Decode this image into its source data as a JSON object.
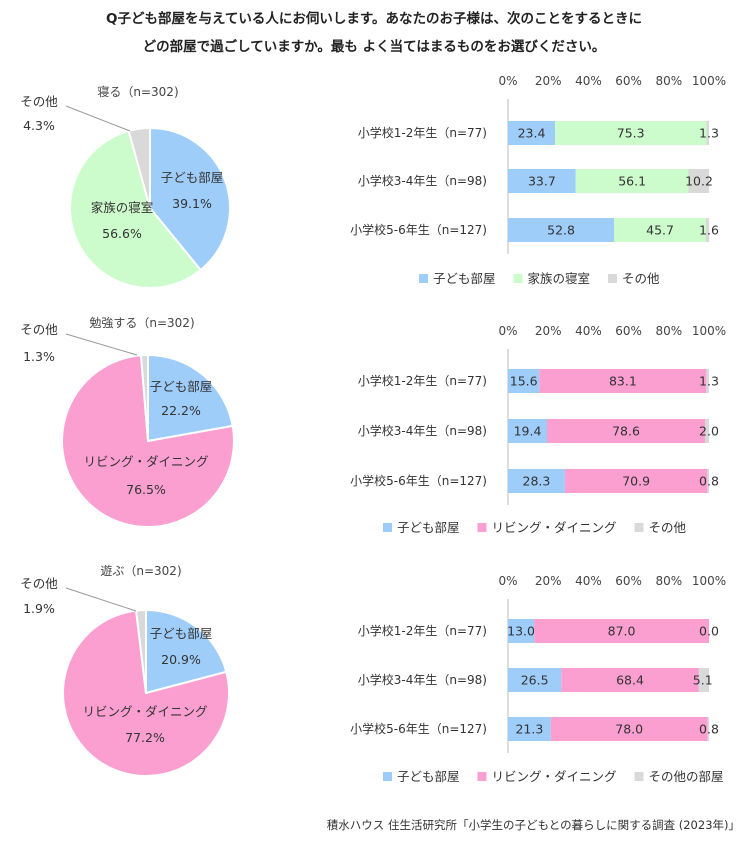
{
  "question": {
    "line1": "Q子ども部屋を与えている人にお伺いします。あなたのお子様は、次のことをするときに",
    "line2": "どの部屋で過ごしていますか。最も よく当てはまるものをお選びください。"
  },
  "source": "積水ハウス 住生活研究所「小学生の子どもとの暮らしに関する調査 (2023年)」",
  "colors": {
    "blue": "#9fcdfa",
    "green": "#ccfccc",
    "pink": "#fb9fd0",
    "gray": "#d9d9d9"
  },
  "chart_data": [
    {
      "type": "pie",
      "title": "寝る（n=302)",
      "slices": [
        {
          "label": "子ども部屋",
          "value": 39.1,
          "pct": "39.1%",
          "color": "#9fcdfa"
        },
        {
          "label": "家族の寝室",
          "value": 56.6,
          "pct": "56.6%",
          "color": "#ccfccc"
        },
        {
          "label": "その他",
          "value": 4.3,
          "pct": "4.3%",
          "color": "#d9d9d9"
        }
      ]
    },
    {
      "type": "bar",
      "orientation": "horizontal",
      "stacked": true,
      "xlim": [
        0,
        100
      ],
      "xticks": [
        "0%",
        "20%",
        "40%",
        "60%",
        "80%",
        "100%"
      ],
      "categories": [
        "小学校1-2年生（n=77)",
        "小学校3-4年生（n=98)",
        "小学校5-6年生（n=127)"
      ],
      "series": [
        {
          "name": "子ども部屋",
          "values": [
            23.4,
            33.7,
            52.8
          ],
          "labels": [
            "23.4",
            "33.7",
            "52.8"
          ],
          "color": "#9fcdfa"
        },
        {
          "name": "家族の寝室",
          "values": [
            75.3,
            56.1,
            45.7
          ],
          "labels": [
            "75.3",
            "56.1",
            "45.7"
          ],
          "color": "#ccfccc"
        },
        {
          "name": "その他",
          "values": [
            1.3,
            10.2,
            1.6
          ],
          "labels": [
            "1.3",
            "10.2",
            "1.6"
          ],
          "color": "#d9d9d9"
        }
      ],
      "legend": "bottom"
    },
    {
      "type": "pie",
      "title": "勉強する（n=302)",
      "slices": [
        {
          "label": "子ども部屋",
          "value": 22.2,
          "pct": "22.2%",
          "color": "#9fcdfa"
        },
        {
          "label": "リビング・ダイニング",
          "value": 76.5,
          "pct": "76.5%",
          "color": "#fb9fd0"
        },
        {
          "label": "その他",
          "value": 1.3,
          "pct": "1.3%",
          "color": "#d9d9d9"
        }
      ]
    },
    {
      "type": "bar",
      "orientation": "horizontal",
      "stacked": true,
      "xlim": [
        0,
        100
      ],
      "xticks": [
        "0%",
        "20%",
        "40%",
        "60%",
        "80%",
        "100%"
      ],
      "categories": [
        "小学校1-2年生（n=77)",
        "小学校3-4年生（n=98)",
        "小学校5-6年生（n=127)"
      ],
      "series": [
        {
          "name": "子ども部屋",
          "values": [
            15.6,
            19.4,
            28.3
          ],
          "labels": [
            "15.6",
            "19.4",
            "28.3"
          ],
          "color": "#9fcdfa"
        },
        {
          "name": "リビング・ダイニング",
          "values": [
            83.1,
            78.6,
            70.9
          ],
          "labels": [
            "83.1",
            "78.6",
            "70.9"
          ],
          "color": "#fb9fd0"
        },
        {
          "name": "その他",
          "values": [
            1.3,
            2.0,
            0.8
          ],
          "labels": [
            "1.3",
            "2.0",
            "0.8"
          ],
          "color": "#d9d9d9"
        }
      ],
      "legend": "bottom"
    },
    {
      "type": "pie",
      "title": "遊ぶ（n=302)",
      "slices": [
        {
          "label": "子ども部屋",
          "value": 20.9,
          "pct": "20.9%",
          "color": "#9fcdfa"
        },
        {
          "label": "リビング・ダイニング",
          "value": 77.2,
          "pct": "77.2%",
          "color": "#fb9fd0"
        },
        {
          "label": "その他",
          "value": 1.9,
          "pct": "1.9%",
          "color": "#d9d9d9"
        }
      ]
    },
    {
      "type": "bar",
      "orientation": "horizontal",
      "stacked": true,
      "xlim": [
        0,
        100
      ],
      "xticks": [
        "0%",
        "20%",
        "40%",
        "60%",
        "80%",
        "100%"
      ],
      "categories": [
        "小学校1-2年生（n=77)",
        "小学校3-4年生（n=98)",
        "小学校5-6年生（n=127)"
      ],
      "series": [
        {
          "name": "子ども部屋",
          "values": [
            13.0,
            26.5,
            21.3
          ],
          "labels": [
            "13.0",
            "26.5",
            "21.3"
          ],
          "color": "#9fcdfa"
        },
        {
          "name": "リビング・ダイニング",
          "values": [
            87.0,
            68.4,
            78.0
          ],
          "labels": [
            "87.0",
            "68.4",
            "78.0"
          ],
          "color": "#fb9fd0"
        },
        {
          "name": "その他の部屋",
          "values": [
            0.0,
            5.1,
            0.8
          ],
          "labels": [
            "0.0",
            "5.1",
            "0.8"
          ],
          "color": "#d9d9d9"
        }
      ],
      "legend": "bottom"
    }
  ]
}
